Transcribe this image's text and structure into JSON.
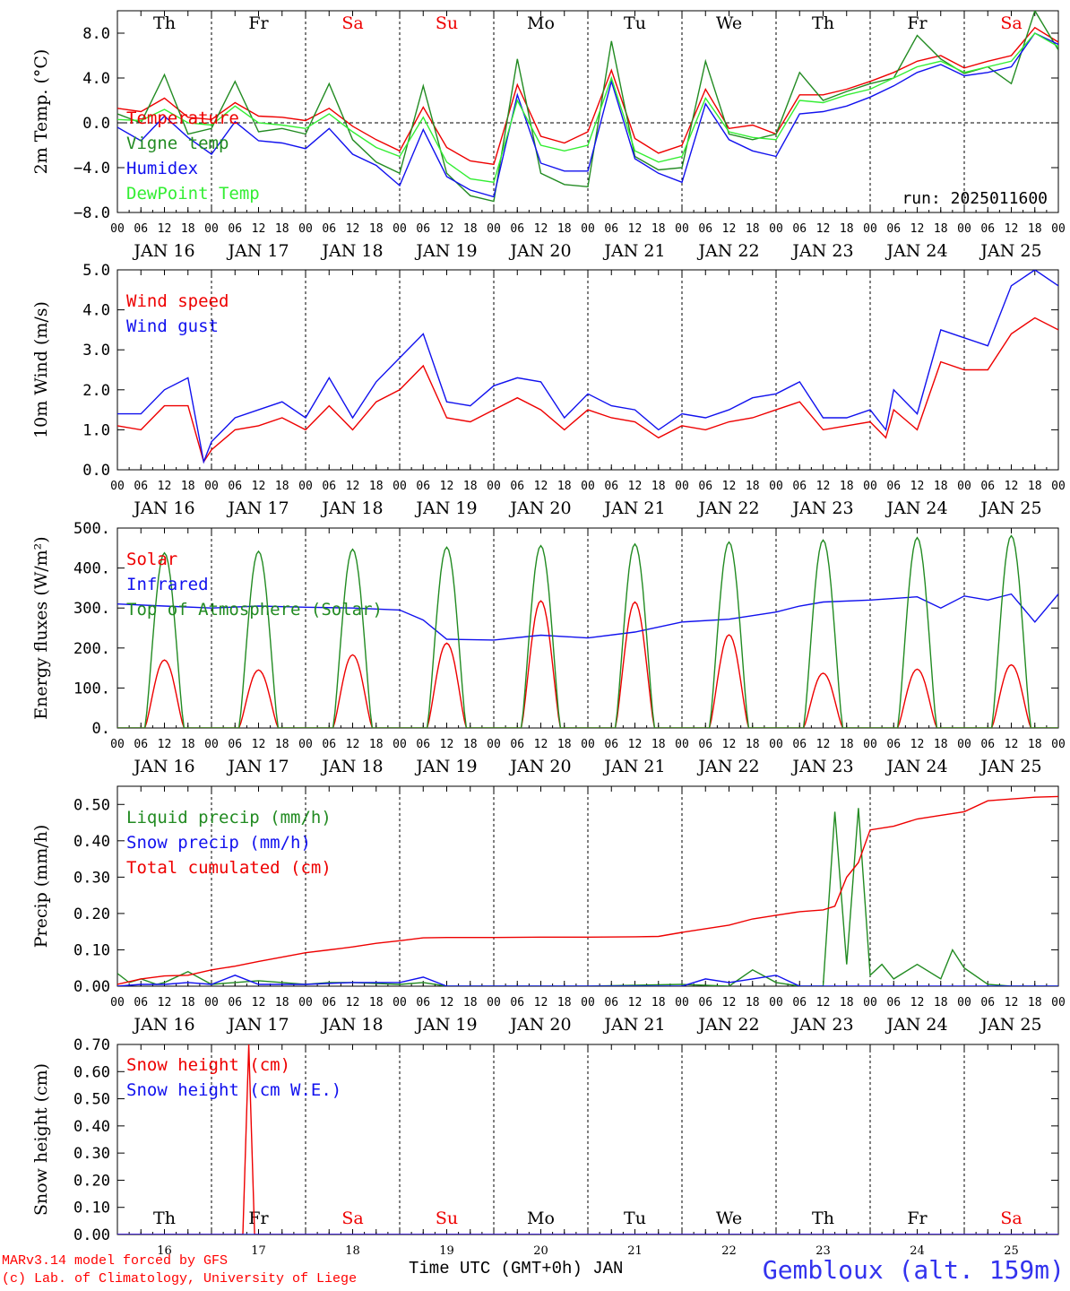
{
  "colors": {
    "red": "#ee0000",
    "green": "#228b22",
    "blue": "#1111ee",
    "lightgreen": "#33ee33",
    "weekend": "#ee0000"
  },
  "timeaxis": {
    "hour_labels": [
      "00",
      "06",
      "12",
      "18"
    ],
    "day_labels": [
      "JAN 16",
      "JAN 17",
      "JAN 18",
      "JAN 19",
      "JAN 20",
      "JAN 21",
      "JAN 22",
      "JAN 23",
      "JAN 24",
      "JAN 25"
    ],
    "weekdays": [
      "Th",
      "Fr",
      "Sa",
      "Su",
      "Mo",
      "Tu",
      "We",
      "Th",
      "Fr",
      "Sa"
    ],
    "weekend": [
      false,
      false,
      true,
      true,
      false,
      false,
      false,
      false,
      false,
      true
    ],
    "day_numbers": [
      "16",
      "17",
      "18",
      "19",
      "20",
      "21",
      "22",
      "23",
      "24",
      "25"
    ],
    "days": 10
  },
  "chart_data": [
    {
      "type": "line",
      "id": "temp",
      "ylabel": "2m Temp. (°C)",
      "ylim": [
        -8,
        10
      ],
      "yticks": [
        -8,
        -4,
        0,
        4,
        8
      ],
      "ytick_labels": [
        "−8.0",
        "−4.0",
        "0.0",
        "4.0",
        "8.0"
      ],
      "zero_line": true,
      "annotation": "run: 2025011600",
      "series": [
        {
          "name": "Temperature",
          "color": "red",
          "x": [
            0,
            6,
            12,
            18,
            24,
            30,
            36,
            42,
            48,
            54,
            60,
            66,
            72,
            78,
            84,
            90,
            96,
            102,
            108,
            114,
            120,
            126,
            132,
            138,
            144,
            150,
            156,
            162,
            168,
            174,
            180,
            186,
            192,
            198,
            204,
            210,
            216,
            222,
            228,
            234,
            240
          ],
          "values": [
            1.3,
            1.0,
            2.2,
            0.5,
            0.3,
            1.8,
            0.6,
            0.5,
            0.2,
            1.3,
            -0.3,
            -1.5,
            -2.5,
            1.4,
            -2.2,
            -3.4,
            -3.7,
            3.4,
            -1.2,
            -1.8,
            -0.8,
            4.7,
            -1.4,
            -2.7,
            -2.0,
            3.0,
            -0.5,
            -0.2,
            -1.0,
            2.5,
            2.5,
            3.0,
            3.7,
            4.5,
            5.5,
            6.0,
            4.9,
            5.5,
            6.0,
            8.5,
            7.2
          ]
        },
        {
          "name": "Vigne temp",
          "color": "green",
          "x": [
            0,
            6,
            12,
            18,
            24,
            30,
            36,
            42,
            48,
            54,
            60,
            66,
            72,
            78,
            84,
            90,
            96,
            102,
            108,
            114,
            120,
            126,
            132,
            138,
            144,
            150,
            156,
            162,
            168,
            174,
            180,
            186,
            192,
            198,
            204,
            210,
            216,
            222,
            228,
            234,
            240
          ],
          "values": [
            0.8,
            0.0,
            4.3,
            -1.0,
            -0.5,
            3.7,
            -0.8,
            -0.5,
            -1.0,
            3.5,
            -1.5,
            -3.5,
            -4.5,
            3.3,
            -4.5,
            -6.5,
            -7.0,
            5.7,
            -4.5,
            -5.5,
            -5.7,
            7.3,
            -3.0,
            -4.2,
            -4.0,
            5.5,
            -1.0,
            -1.5,
            -1.0,
            4.5,
            2.0,
            2.8,
            3.5,
            4.0,
            7.8,
            5.7,
            4.4,
            5.0,
            3.5,
            10.0,
            6.5
          ]
        },
        {
          "name": "Humidex",
          "color": "blue",
          "x": [
            0,
            6,
            12,
            18,
            24,
            30,
            36,
            42,
            48,
            54,
            60,
            66,
            72,
            78,
            84,
            90,
            96,
            102,
            108,
            114,
            120,
            126,
            132,
            138,
            144,
            150,
            156,
            162,
            168,
            174,
            180,
            186,
            192,
            198,
            204,
            210,
            216,
            222,
            228,
            234,
            240
          ],
          "values": [
            -0.4,
            -1.6,
            0.6,
            -1.3,
            -2.8,
            0.1,
            -1.6,
            -1.8,
            -2.3,
            -0.5,
            -2.8,
            -3.8,
            -5.6,
            -0.6,
            -4.8,
            -6.0,
            -6.6,
            2.5,
            -3.6,
            -4.3,
            -4.3,
            3.7,
            -3.2,
            -4.5,
            -5.3,
            1.7,
            -1.5,
            -2.5,
            -3.0,
            0.8,
            1.0,
            1.5,
            2.3,
            3.3,
            4.5,
            5.2,
            4.2,
            4.5,
            5.0,
            8.0,
            7.0
          ]
        },
        {
          "name": "DewPoint Temp",
          "color": "lightgreen",
          "x": [
            0,
            6,
            12,
            18,
            24,
            30,
            36,
            42,
            48,
            54,
            60,
            66,
            72,
            78,
            84,
            90,
            96,
            102,
            108,
            114,
            120,
            126,
            132,
            138,
            144,
            150,
            156,
            162,
            168,
            174,
            180,
            186,
            192,
            198,
            204,
            210,
            216,
            222,
            228,
            234,
            240
          ],
          "values": [
            0.3,
            0.2,
            1.2,
            0.0,
            -0.2,
            1.5,
            0.0,
            -0.2,
            -0.5,
            0.8,
            -0.8,
            -2.2,
            -3.0,
            0.5,
            -3.5,
            -5.0,
            -5.3,
            2.0,
            -2.0,
            -2.5,
            -2.0,
            4.0,
            -2.5,
            -3.5,
            -3.0,
            2.2,
            -0.8,
            -1.3,
            -1.5,
            2.0,
            1.8,
            2.5,
            3.0,
            4.0,
            5.0,
            5.5,
            4.5,
            5.0,
            5.5,
            8.0,
            6.8
          ]
        }
      ]
    },
    {
      "type": "line",
      "id": "wind",
      "ylabel": "10m Wind (m/s)",
      "ylim": [
        0,
        5
      ],
      "yticks": [
        0,
        1,
        2,
        3,
        4,
        5
      ],
      "ytick_labels": [
        "0.0",
        "1.0",
        "2.0",
        "3.0",
        "4.0",
        "5.0"
      ],
      "series": [
        {
          "name": "Wind speed",
          "color": "red",
          "x": [
            0,
            6,
            12,
            18,
            22,
            24,
            30,
            36,
            42,
            48,
            54,
            60,
            66,
            72,
            78,
            84,
            90,
            96,
            102,
            108,
            114,
            120,
            126,
            132,
            138,
            144,
            150,
            156,
            162,
            168,
            174,
            180,
            186,
            192,
            196,
            198,
            204,
            210,
            216,
            222,
            228,
            234,
            240
          ],
          "values": [
            1.1,
            1.0,
            1.6,
            1.6,
            0.2,
            0.5,
            1.0,
            1.1,
            1.3,
            1.0,
            1.6,
            1.0,
            1.7,
            2.0,
            2.6,
            1.3,
            1.2,
            1.5,
            1.8,
            1.5,
            1.0,
            1.5,
            1.3,
            1.2,
            0.8,
            1.1,
            1.0,
            1.2,
            1.3,
            1.5,
            1.7,
            1.0,
            1.1,
            1.2,
            0.8,
            1.5,
            1.0,
            2.7,
            2.5,
            2.5,
            3.4,
            3.8,
            3.5
          ]
        },
        {
          "name": "Wind gust",
          "color": "blue",
          "x": [
            0,
            6,
            12,
            18,
            22,
            24,
            30,
            36,
            42,
            48,
            54,
            60,
            66,
            72,
            78,
            84,
            90,
            96,
            102,
            108,
            114,
            120,
            126,
            132,
            138,
            144,
            150,
            156,
            162,
            168,
            174,
            180,
            186,
            192,
            196,
            198,
            204,
            210,
            216,
            222,
            228,
            234,
            240
          ],
          "values": [
            1.4,
            1.4,
            2.0,
            2.3,
            0.2,
            0.7,
            1.3,
            1.5,
            1.7,
            1.3,
            2.3,
            1.3,
            2.2,
            2.8,
            3.4,
            1.7,
            1.6,
            2.1,
            2.3,
            2.2,
            1.3,
            1.9,
            1.6,
            1.5,
            1.0,
            1.4,
            1.3,
            1.5,
            1.8,
            1.9,
            2.2,
            1.3,
            1.3,
            1.5,
            1.0,
            2.0,
            1.4,
            3.5,
            3.3,
            3.1,
            4.6,
            5.0,
            4.6
          ]
        }
      ]
    },
    {
      "type": "line",
      "id": "energy",
      "ylabel": "Energy fluxes (W/m²)",
      "ylim": [
        0,
        500
      ],
      "yticks": [
        0,
        100,
        200,
        300,
        400,
        500
      ],
      "ytick_labels": [
        "0.",
        "100.",
        "200.",
        "300.",
        "400.",
        "500."
      ],
      "series": [
        {
          "name": "Solar",
          "color": "red",
          "diurnal_peaks": [
            170,
            145,
            183,
            212,
            318,
            315,
            233,
            137,
            147,
            158
          ]
        },
        {
          "name": "Infrared",
          "color": "blue",
          "x": [
            0,
            12,
            24,
            36,
            48,
            60,
            72,
            78,
            84,
            96,
            108,
            120,
            132,
            144,
            156,
            168,
            174,
            180,
            192,
            204,
            210,
            216,
            222,
            228,
            234,
            240
          ],
          "values": [
            310,
            305,
            300,
            305,
            302,
            300,
            295,
            270,
            222,
            220,
            232,
            225,
            240,
            265,
            272,
            290,
            305,
            315,
            320,
            328,
            300,
            330,
            320,
            335,
            265,
            335
          ]
        },
        {
          "name": "Top of Atmosphere (Solar)",
          "color": "green",
          "diurnal_peaks": [
            438,
            442,
            447,
            452,
            456,
            460,
            465,
            470,
            476,
            481
          ]
        }
      ]
    },
    {
      "type": "line",
      "id": "precip",
      "ylabel": "Precip (mm/h)",
      "ylim": [
        0,
        0.55
      ],
      "yticks": [
        0,
        0.1,
        0.2,
        0.3,
        0.4,
        0.5
      ],
      "ytick_labels": [
        "0.00",
        "0.10",
        "0.20",
        "0.30",
        "0.40",
        "0.50"
      ],
      "series": [
        {
          "name": "Liquid precip (mm/h)",
          "color": "green",
          "x": [
            0,
            3,
            6,
            10,
            12,
            18,
            24,
            30,
            36,
            42,
            48,
            54,
            60,
            72,
            78,
            84,
            96,
            108,
            120,
            144,
            156,
            162,
            168,
            174,
            180,
            183,
            186,
            189,
            192,
            195,
            198,
            204,
            210,
            213,
            216,
            222,
            228,
            234,
            240
          ],
          "values": [
            0.035,
            0.01,
            0.02,
            0.005,
            0.01,
            0.04,
            0.005,
            0.01,
            0.015,
            0.01,
            0.005,
            0.01,
            0.01,
            0.005,
            0.01,
            0.0,
            0.0,
            0.0,
            0.0,
            0.005,
            0.0,
            0.045,
            0.01,
            0.0,
            0.0,
            0.48,
            0.06,
            0.49,
            0.03,
            0.06,
            0.02,
            0.06,
            0.02,
            0.1,
            0.05,
            0.005,
            0.0,
            0.0,
            0.0
          ]
        },
        {
          "name": "Snow precip (mm/h)",
          "color": "blue",
          "x": [
            0,
            6,
            12,
            18,
            24,
            30,
            36,
            48,
            60,
            72,
            78,
            84,
            96,
            108,
            120,
            144,
            150,
            156,
            162,
            168,
            174,
            180,
            192,
            204,
            216,
            240
          ],
          "values": [
            0.0,
            0.005,
            0.005,
            0.01,
            0.005,
            0.03,
            0.005,
            0.005,
            0.01,
            0.01,
            0.025,
            0.0,
            0.0,
            0.0,
            0.0,
            0.0,
            0.02,
            0.01,
            0.02,
            0.03,
            0.0,
            0.0,
            0.0,
            0.0,
            0.0,
            0.0
          ]
        },
        {
          "name": "Total cumulated (cm)",
          "color": "red",
          "x": [
            0,
            6,
            12,
            18,
            24,
            30,
            36,
            42,
            48,
            54,
            60,
            66,
            72,
            78,
            84,
            96,
            108,
            120,
            132,
            138,
            144,
            150,
            156,
            162,
            168,
            174,
            180,
            183,
            186,
            189,
            192,
            198,
            204,
            210,
            216,
            222,
            228,
            234,
            240
          ],
          "values": [
            0.005,
            0.02,
            0.028,
            0.03,
            0.045,
            0.055,
            0.068,
            0.08,
            0.092,
            0.1,
            0.108,
            0.118,
            0.125,
            0.133,
            0.134,
            0.134,
            0.135,
            0.135,
            0.136,
            0.137,
            0.148,
            0.158,
            0.168,
            0.185,
            0.195,
            0.205,
            0.21,
            0.22,
            0.3,
            0.34,
            0.43,
            0.44,
            0.46,
            0.47,
            0.48,
            0.51,
            0.515,
            0.52,
            0.522
          ]
        }
      ]
    },
    {
      "type": "line",
      "id": "snow",
      "ylabel": "Snow height (cm)",
      "ylim": [
        0,
        0.7
      ],
      "yticks": [
        0,
        0.1,
        0.2,
        0.3,
        0.4,
        0.5,
        0.6,
        0.7
      ],
      "ytick_labels": [
        "0.00",
        "0.10",
        "0.20",
        "0.30",
        "0.40",
        "0.50",
        "0.60",
        "0.70"
      ],
      "series": [
        {
          "name": "Snow height (cm)",
          "color": "red",
          "x": [
            0,
            32,
            33.5,
            35,
            240
          ],
          "values": [
            0,
            0,
            0.7,
            0,
            0
          ]
        },
        {
          "name": "Snow height (cm W.E.)",
          "color": "blue",
          "x": [
            0,
            240
          ],
          "values": [
            0,
            0
          ]
        }
      ]
    }
  ],
  "footer": {
    "credit_line1": "MARv3.14 model forced by GFS",
    "credit_line2": "(c) Lab. of Climatology, University of Liege",
    "xaxis_title": "Time UTC (GMT+0h) JAN",
    "station": "Gembloux (alt. 159m)"
  }
}
